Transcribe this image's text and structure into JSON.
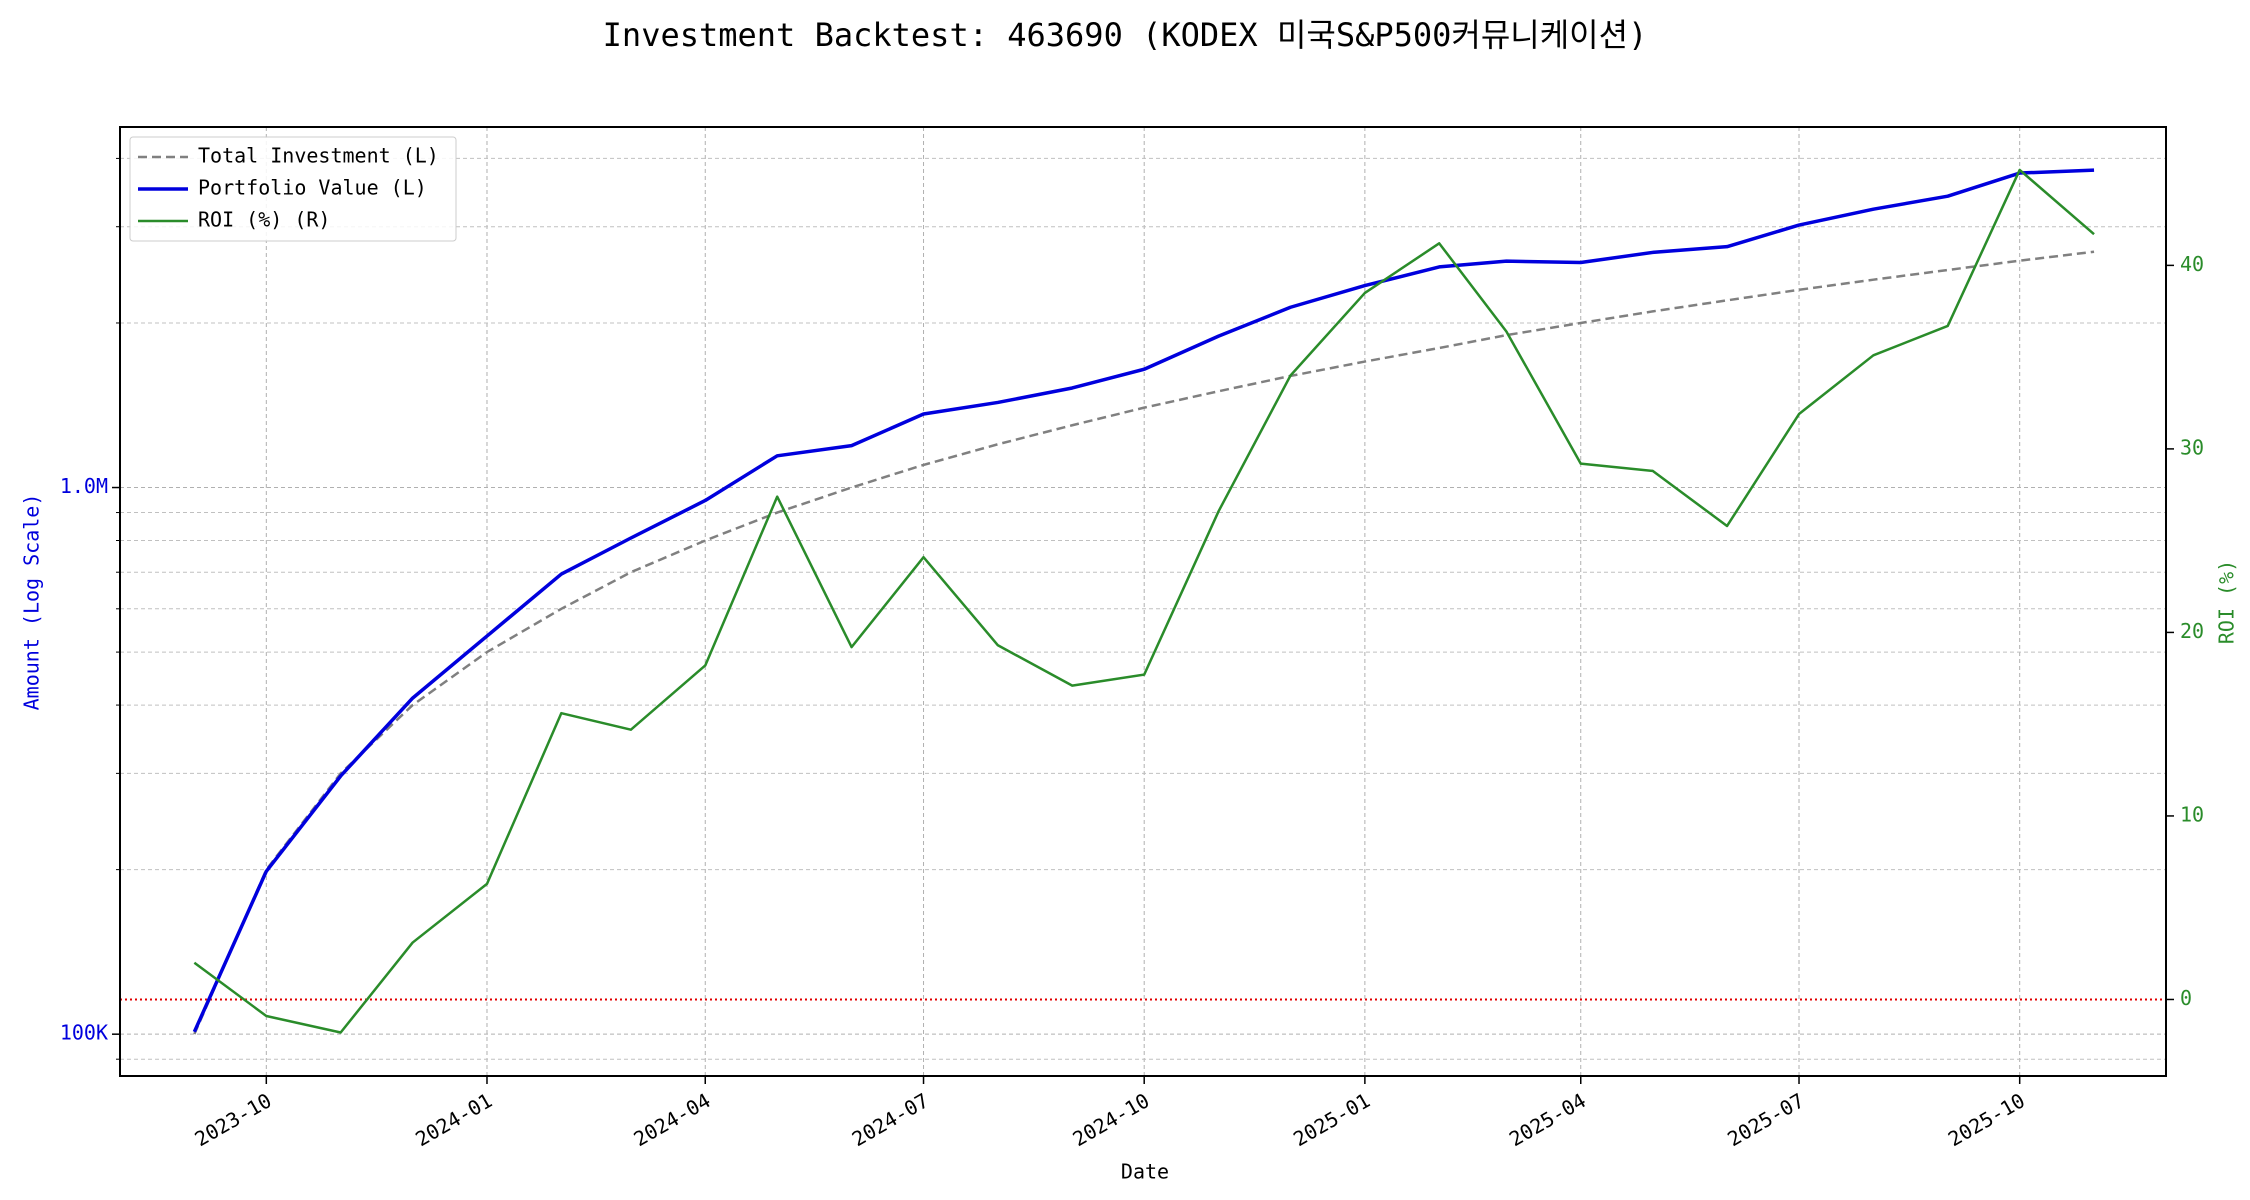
{
  "chart_data": {
    "type": "line",
    "title": "Investment Backtest: 463690 (KODEX 미국S&P500커뮤니케이션)",
    "x_label": "Date",
    "y_label": "Amount (Log Scale)",
    "y2_label": "ROI (%)",
    "x": [
      "2023-09",
      "2023-10",
      "2023-11",
      "2023-12",
      "2024-01",
      "2024-02",
      "2024-03",
      "2024-04",
      "2024-05",
      "2024-06",
      "2024-07",
      "2024-08",
      "2024-09",
      "2024-10",
      "2024-11",
      "2024-12",
      "2025-01",
      "2025-02",
      "2025-03",
      "2025-04",
      "2025-05",
      "2025-06",
      "2025-07",
      "2025-08",
      "2025-09",
      "2025-10",
      "2025-11"
    ],
    "xlim": [
      "2023-08",
      "2025-12"
    ],
    "xticks": [
      "2023-10",
      "2024-01",
      "2024-04",
      "2024-07",
      "2024-10",
      "2025-01",
      "2025-04",
      "2025-07",
      "2025-10"
    ],
    "y_scale": "log",
    "ylim": [
      83850,
      4566000
    ],
    "yticks": [
      {
        "value": 100000,
        "label": "100K"
      },
      {
        "value": 1000000,
        "label": "1.0M"
      }
    ],
    "y_minor_ticks": [
      90000,
      200000,
      300000,
      400000,
      500000,
      600000,
      700000,
      800000,
      900000,
      2000000,
      3000000,
      4000000
    ],
    "y2lim": [
      -4.17,
      47.54
    ],
    "y2ticks": [
      0,
      10,
      20,
      30,
      40
    ],
    "y2_reference": {
      "value": 0,
      "color": "#e00000"
    },
    "grid": true,
    "legend": "upper left",
    "series": [
      {
        "name": "Total Investment (L)",
        "color": "#808080",
        "linestyle": "dashed",
        "linewidth": 2.5,
        "values": [
          100000,
          200000,
          300000,
          400000,
          500000,
          600000,
          700000,
          800000,
          900000,
          1000000,
          1100000,
          1200000,
          1300000,
          1400000,
          1500000,
          1600000,
          1700000,
          1800000,
          1900000,
          2000000,
          2100000,
          2200000,
          2300000,
          2400000,
          2500000,
          2600000,
          2700000
        ]
      },
      {
        "name": "Portfolio Value (L)",
        "color": "#0000dd",
        "linestyle": "solid",
        "linewidth": 3.5,
        "values": [
          101000,
          198600,
          296700,
          411900,
          534900,
          694500,
          808500,
          946900,
          1143000,
          1193000,
          1363000,
          1431000,
          1521000,
          1646000,
          1892000,
          2137000,
          2341000,
          2533000,
          2595000,
          2580000,
          2692000,
          2758000,
          3021000,
          3230000,
          3412000,
          3761000,
          3807000
        ]
      },
      {
        "name": "ROI (%) (R)",
        "color": "#2a8c2a",
        "linestyle": "solid",
        "linewidth": 2.5,
        "axis": "y2",
        "values": [
          2.0,
          -0.9,
          -1.8,
          3.1,
          6.3,
          15.6,
          14.7,
          18.2,
          27.4,
          19.2,
          24.1,
          19.3,
          17.1,
          17.7,
          26.6,
          34.0,
          38.5,
          41.2,
          36.4,
          29.2,
          28.8,
          25.8,
          31.9,
          35.1,
          36.7,
          45.2,
          41.7
        ]
      }
    ]
  }
}
